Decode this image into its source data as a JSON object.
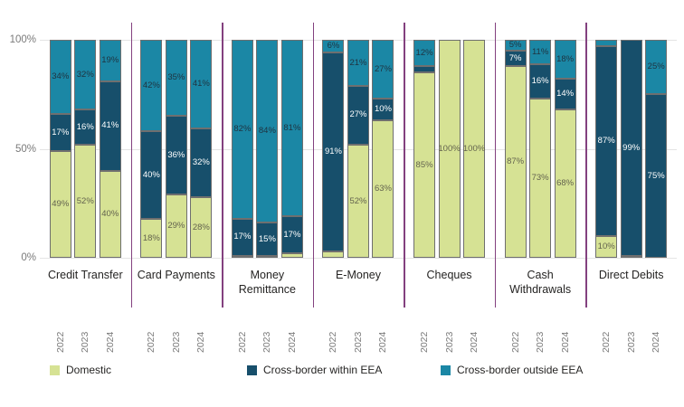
{
  "chart_data": {
    "type": "bar",
    "variant": "stacked-100-percent-column",
    "title": "",
    "ylabel": "",
    "xlabel": "",
    "ylim": [
      0,
      100
    ],
    "grid": "horizontal",
    "yticks": [
      {
        "label": "0%",
        "value": 0
      },
      {
        "label": "50%",
        "value": 50
      },
      {
        "label": "100%",
        "value": 100
      }
    ],
    "series_names": [
      "Domestic",
      "Cross-border within EEA",
      "Cross-border outside EEA"
    ],
    "series_keys": [
      "domestic",
      "within-eea",
      "outside-eea"
    ],
    "colors": {
      "domestic": "#d6e294",
      "within_eea": "#174f6b",
      "outside_eea": "#1b87a5",
      "separator": "#83417f",
      "gridline": "#e4e4e4",
      "segment_border": "#6f6f6f"
    },
    "label_colors": {
      "domestic": "#63634e",
      "within_eea": "#ffffff",
      "outside_eea": "#1f3340"
    },
    "categories": [
      "Credit Transfer",
      "Card Payments",
      "Money Remittance",
      "E-Money",
      "Cheques",
      "Cash Withdrawals",
      "Direct Debits"
    ],
    "years": [
      "2022",
      "2023",
      "2024"
    ],
    "groups": [
      {
        "category": "Credit Transfer",
        "bars": [
          {
            "year": "2022",
            "values": [
              49,
              17,
              34
            ],
            "labels": [
              "49%",
              "17%",
              "34%"
            ]
          },
          {
            "year": "2023",
            "values": [
              52,
              16,
              32
            ],
            "labels": [
              "52%",
              "16%",
              "32%"
            ]
          },
          {
            "year": "2024",
            "values": [
              40,
              41,
              19
            ],
            "labels": [
              "40%",
              "41%",
              "19%"
            ]
          }
        ]
      },
      {
        "category": "Card Payments",
        "bars": [
          {
            "year": "2022",
            "values": [
              18,
              40,
              42
            ],
            "labels": [
              "18%",
              "40%",
              "42%"
            ]
          },
          {
            "year": "2023",
            "values": [
              29,
              36,
              35
            ],
            "labels": [
              "29%",
              "36%",
              "35%"
            ]
          },
          {
            "year": "2024",
            "values": [
              28,
              32,
              41
            ],
            "labels": [
              "28%",
              "32%",
              "41%"
            ]
          }
        ]
      },
      {
        "category": "Money Remittance",
        "bars": [
          {
            "year": "2022",
            "values": [
              1,
              17,
              82
            ],
            "labels": [
              "",
              "17%",
              "82%"
            ]
          },
          {
            "year": "2023",
            "values": [
              1,
              15,
              84
            ],
            "labels": [
              "",
              "15%",
              "84%"
            ]
          },
          {
            "year": "2024",
            "values": [
              2,
              17,
              81
            ],
            "labels": [
              "",
              "17%",
              "81%"
            ]
          }
        ]
      },
      {
        "category": "E-Money",
        "bars": [
          {
            "year": "2022",
            "values": [
              3,
              91,
              6
            ],
            "labels": [
              "",
              "91%",
              "6%"
            ]
          },
          {
            "year": "2023",
            "values": [
              52,
              27,
              21
            ],
            "labels": [
              "52%",
              "27%",
              "21%"
            ]
          },
          {
            "year": "2024",
            "values": [
              63,
              10,
              27
            ],
            "labels": [
              "63%",
              "10%",
              "27%"
            ]
          }
        ]
      },
      {
        "category": "Cheques",
        "bars": [
          {
            "year": "2022",
            "values": [
              85,
              3,
              12
            ],
            "labels": [
              "85%",
              "",
              "12%"
            ]
          },
          {
            "year": "2023",
            "values": [
              100,
              0,
              0
            ],
            "labels": [
              "100%",
              "",
              ""
            ]
          },
          {
            "year": "2024",
            "values": [
              100,
              0,
              0
            ],
            "labels": [
              "100%",
              "",
              ""
            ]
          }
        ]
      },
      {
        "category": "Cash Withdrawals",
        "bars": [
          {
            "year": "2022",
            "values": [
              87,
              7,
              5
            ],
            "labels": [
              "87%",
              "7%",
              "5%"
            ]
          },
          {
            "year": "2023",
            "values": [
              73,
              16,
              11
            ],
            "labels": [
              "73%",
              "16%",
              "11%"
            ]
          },
          {
            "year": "2024",
            "values": [
              68,
              14,
              18
            ],
            "labels": [
              "68%",
              "14%",
              "18%"
            ]
          }
        ]
      },
      {
        "category": "Direct Debits",
        "bars": [
          {
            "year": "2022",
            "values": [
              10,
              87,
              3
            ],
            "labels": [
              "10%",
              "87%",
              ""
            ]
          },
          {
            "year": "2023",
            "values": [
              1,
              99,
              0
            ],
            "labels": [
              "",
              "99%",
              ""
            ]
          },
          {
            "year": "2024",
            "values": [
              0,
              75,
              25
            ],
            "labels": [
              "",
              "75%",
              "25%"
            ]
          }
        ]
      }
    ]
  },
  "legend": {
    "items": [
      {
        "label": "Domestic",
        "color": "#d6e294"
      },
      {
        "label": "Cross-border within EEA",
        "color": "#174f6b"
      },
      {
        "label": "Cross-border outside EEA",
        "color": "#1b87a5"
      }
    ]
  }
}
